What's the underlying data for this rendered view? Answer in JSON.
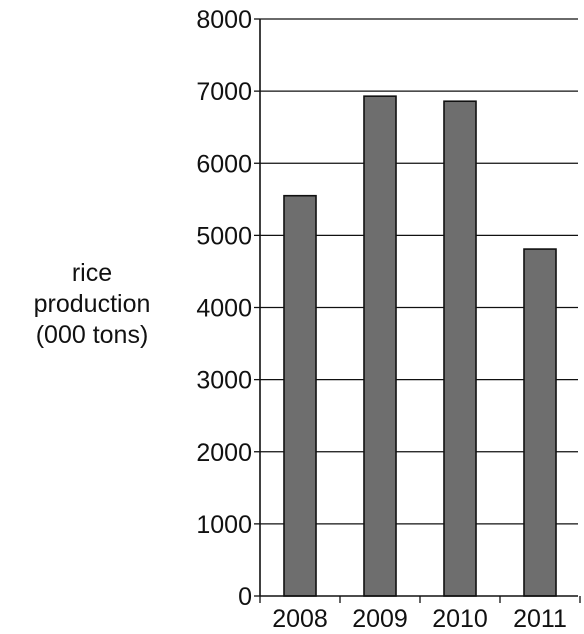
{
  "chart_data": {
    "type": "bar",
    "title": "",
    "xlabel": "",
    "ylabel_lines": [
      "rice",
      "production",
      "(000 tons)"
    ],
    "categories": [
      "2008",
      "2009",
      "2010",
      "2011"
    ],
    "values": [
      5550,
      6930,
      6860,
      4810
    ],
    "ylim": [
      0,
      8000
    ],
    "yticks": [
      0,
      1000,
      2000,
      3000,
      4000,
      5000,
      6000,
      7000,
      8000
    ],
    "grid": true,
    "legend": "none",
    "bar_color": "#6e6e6e",
    "bar_edge_color": "#111111",
    "axis_color": "#111111"
  }
}
